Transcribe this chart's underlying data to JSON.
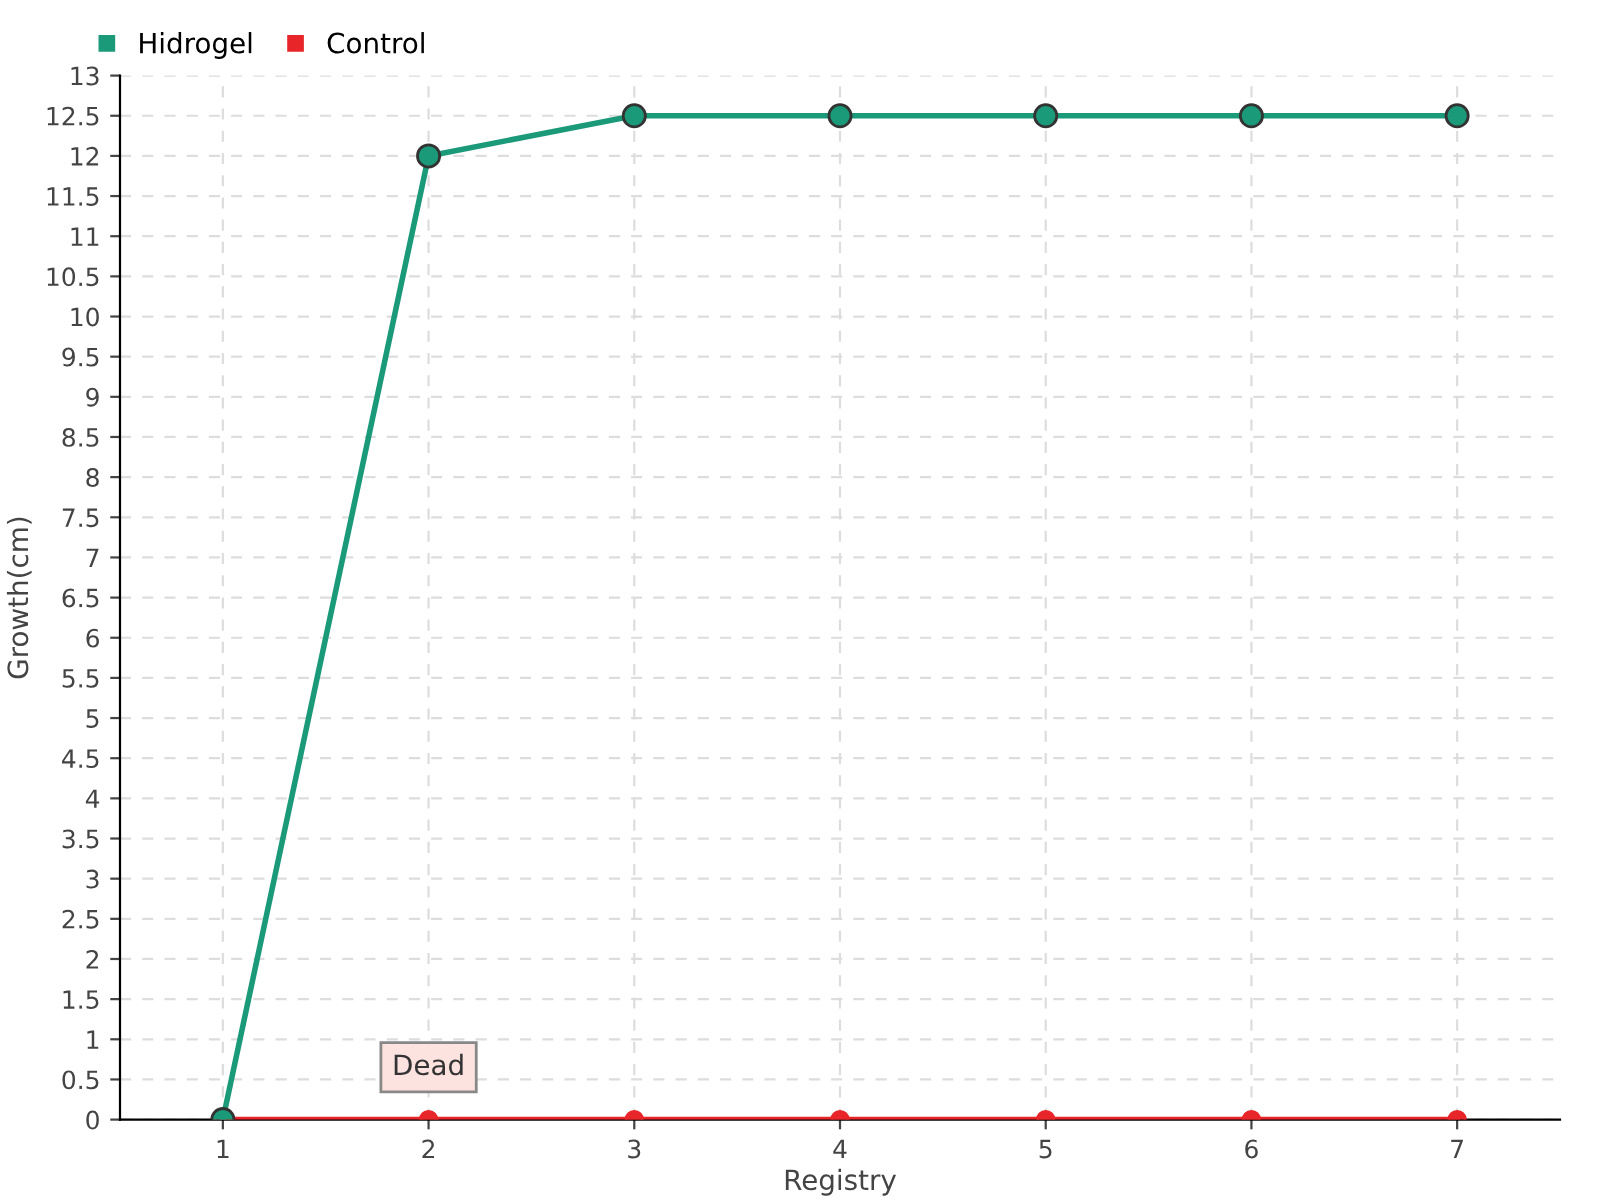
{
  "chart_data": {
    "type": "line",
    "xlabel": "Registry",
    "ylabel": "Growth(cm)",
    "categories": [
      "1",
      "2",
      "3",
      "4",
      "5",
      "6",
      "7"
    ],
    "series": [
      {
        "name": "Hidrogel",
        "color": "#1b9a7a",
        "values": [
          0,
          12,
          12.5,
          12.5,
          12.5,
          12.5,
          12.5
        ]
      },
      {
        "name": "Control",
        "color": "#e8262a",
        "values": [
          0,
          0,
          0,
          0,
          0,
          0,
          0
        ]
      }
    ],
    "ylim": [
      0,
      13
    ],
    "yticks": [
      0,
      0.5,
      1,
      1.5,
      2,
      2.5,
      3,
      3.5,
      4,
      4.5,
      5,
      5.5,
      6,
      6.5,
      7,
      7.5,
      8,
      8.5,
      9,
      9.5,
      10,
      10.5,
      11,
      11.5,
      12,
      12.5,
      13
    ],
    "annotations": [
      {
        "text": "Dead",
        "x": "2",
        "y": 0
      }
    ],
    "grid": true,
    "legend": "top left",
    "marker": "circle",
    "line_style": "solid"
  }
}
